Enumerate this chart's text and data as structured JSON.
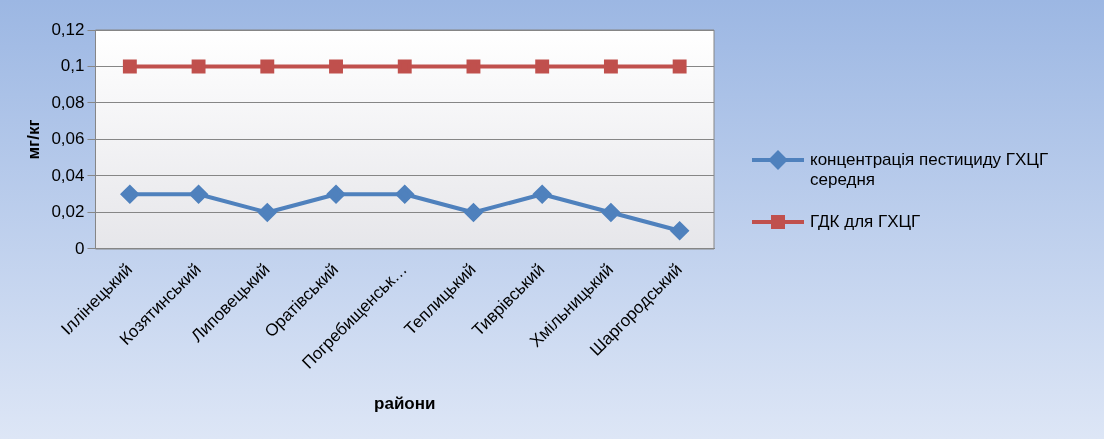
{
  "chart_data": {
    "type": "line",
    "xlabel": "райони",
    "ylabel": "мг/кг",
    "categories": [
      "Іллінецький",
      "Козятинський",
      "Липовецький",
      "Оратівський",
      "Погребищенськ…",
      "Теплицький",
      "Тиврівський",
      "Хмільницький",
      "Шаргородський"
    ],
    "series": [
      {
        "name": "концентрація пестициду ГХЦГ середня",
        "color": "#4f81bd",
        "marker": "diamond",
        "values": [
          0.03,
          0.03,
          0.02,
          0.03,
          0.03,
          0.02,
          0.03,
          0.02,
          0.01
        ]
      },
      {
        "name": "ГДК для ГХЦГ",
        "color": "#c0504d",
        "marker": "square",
        "values": [
          0.1,
          0.1,
          0.1,
          0.1,
          0.1,
          0.1,
          0.1,
          0.1,
          0.1
        ]
      }
    ],
    "ylim": [
      0,
      0.12
    ],
    "yticks": [
      {
        "value": 0,
        "label": "0"
      },
      {
        "value": 0.02,
        "label": "0,02"
      },
      {
        "value": 0.04,
        "label": "0,04"
      },
      {
        "value": 0.06,
        "label": "0,06"
      },
      {
        "value": 0.08,
        "label": "0,08"
      },
      {
        "value": 0.1,
        "label": "0,1"
      },
      {
        "value": 0.12,
        "label": "0,12"
      }
    ],
    "grid": "y",
    "legend": "right",
    "line_style": "solid"
  }
}
